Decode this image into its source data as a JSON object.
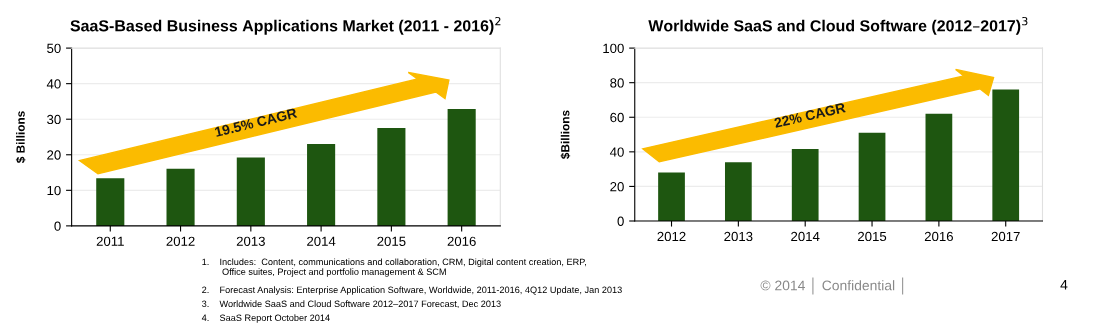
{
  "chart_data": [
    {
      "type": "bar",
      "title": "SaaS-Based Business Applications Market (2011 - 2016)$^{2}$",
      "ylabel": "$ Billions",
      "categories": [
        "2011",
        "2012",
        "2013",
        "2014",
        "2015",
        "2016"
      ],
      "values": [
        13.4,
        16.1,
        19.2,
        23,
        27.5,
        32.9
      ],
      "color": "#1e5610",
      "ylim": [
        0,
        50
      ],
      "yticks": [
        0,
        10,
        20,
        30,
        40,
        50
      ],
      "grid": "y",
      "annotations": [
        "19.5% CAGR",
        "1.    Includes:  Content, communications and collaboration, CRM, Digital content creation, ERP,\n        Office suites, Project and portfolio management & SCM",
        "2.    Forecast Analysis: Enterprise Application Software, Worldwide, 2011-2016, 4Q12 Update, Jan 2013",
        "3.    Worldwide SaaS and Cloud Software 2012–2017 Forecast, Dec 2013",
        "4.    SaaS Report October 2014"
      ]
    },
    {
      "type": "bar",
      "title": "Worldwide SaaS and Cloud Software (2012–2017)$^{3}$",
      "ylabel": "$Billions",
      "categories": [
        "2012",
        "2013",
        "2014",
        "2015",
        "2016",
        "2017"
      ],
      "values": [
        28,
        34,
        41.6,
        51,
        62,
        76
      ],
      "color": "#1e5610",
      "ylim": [
        0,
        100
      ],
      "yticks": [
        0,
        20,
        40,
        60,
        80,
        100
      ],
      "grid": "y",
      "annotations": [
        "22% CAGR",
        "© 2014 │ Confidential │",
        "4"
      ]
    }
  ]
}
